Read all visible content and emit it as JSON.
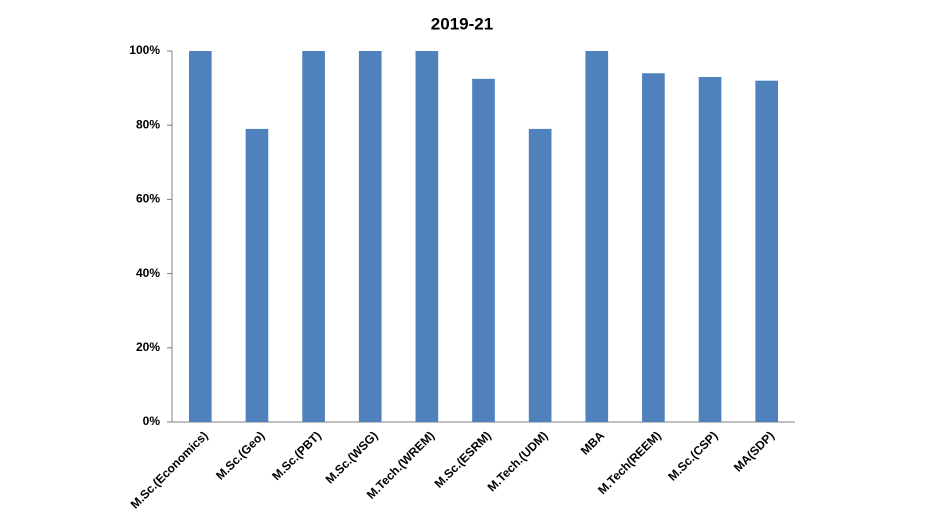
{
  "chart_data": {
    "type": "bar",
    "title": "2019-21",
    "categories": [
      "M.Sc.(Economics)",
      "M.Sc.(Geo)",
      "M.Sc.(PBT)",
      "M.Sc.(WSG)",
      "M.Tech.(WREM)",
      "M.Sc.(ESRM)",
      "M.Tech.(UDM)",
      "MBA",
      "M.Tech(REEM)",
      "M.Sc.(CSP)",
      "MA(SDP)"
    ],
    "values": [
      100,
      79,
      100,
      100,
      100,
      92.5,
      79,
      100,
      94,
      93,
      92
    ],
    "color": "#4f81bd",
    "ylim": [
      0,
      100
    ],
    "yticks": [
      {
        "value": 0,
        "label": "0%"
      },
      {
        "value": 20,
        "label": "20%"
      },
      {
        "value": 40,
        "label": "40%"
      },
      {
        "value": 60,
        "label": "60%"
      },
      {
        "value": 80,
        "label": "80%"
      },
      {
        "value": 100,
        "label": "100%"
      }
    ],
    "grid": false
  }
}
